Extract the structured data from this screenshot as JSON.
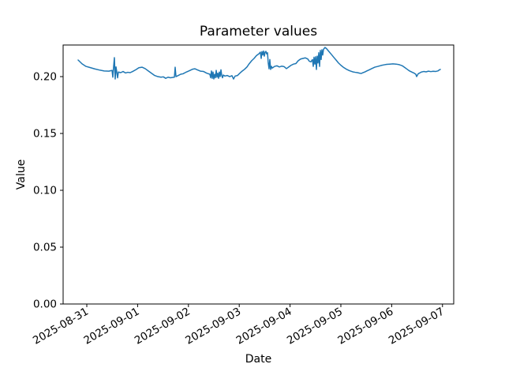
{
  "figure": {
    "background": "#ffffff",
    "axis_color": "#000000",
    "text_color": "#000000"
  },
  "chart_data": {
    "type": "line",
    "title": "Parameter values",
    "xlabel": "Date",
    "ylabel": "Value",
    "grid": false,
    "legend": null,
    "x_epoch": "2025-08-31",
    "x_tick_positions_days": [
      0,
      1,
      2,
      3,
      4,
      5,
      6,
      7
    ],
    "x_tick_labels": [
      "2025-08-31",
      "2025-09-01",
      "2025-09-02",
      "2025-09-03",
      "2025-09-04",
      "2025-09-05",
      "2025-09-06",
      "2025-09-07"
    ],
    "x_tick_rotation_deg": 30,
    "y_ticks": [
      0.0,
      0.05,
      0.1,
      0.15,
      0.2
    ],
    "y_tick_labels": [
      "0.00",
      "0.05",
      "0.10",
      "0.15",
      "0.20"
    ],
    "xlim_days": [
      -0.466,
      7.221
    ],
    "ylim": [
      0.0,
      0.2278
    ],
    "series": [
      {
        "name": "parameter-value",
        "color": "#1f77b4",
        "points": [
          [
            -0.171,
            0.2146
          ],
          [
            -0.093,
            0.2112
          ],
          [
            -0.016,
            0.209
          ],
          [
            0.062,
            0.208
          ],
          [
            0.155,
            0.2068
          ],
          [
            0.248,
            0.2058
          ],
          [
            0.342,
            0.205
          ],
          [
            0.435,
            0.2048
          ],
          [
            0.497,
            0.2055
          ],
          [
            0.512,
            0.1995
          ],
          [
            0.528,
            0.209
          ],
          [
            0.543,
            0.2167
          ],
          [
            0.559,
            0.1979
          ],
          [
            0.575,
            0.2085
          ],
          [
            0.59,
            0.204
          ],
          [
            0.606,
            0.199
          ],
          [
            0.621,
            0.204
          ],
          [
            0.668,
            0.2035
          ],
          [
            0.714,
            0.2045
          ],
          [
            0.761,
            0.2032
          ],
          [
            0.807,
            0.2038
          ],
          [
            0.854,
            0.2035
          ],
          [
            0.901,
            0.2045
          ],
          [
            0.963,
            0.206
          ],
          [
            1.025,
            0.2078
          ],
          [
            1.087,
            0.2083
          ],
          [
            1.149,
            0.207
          ],
          [
            1.211,
            0.205
          ],
          [
            1.273,
            0.203
          ],
          [
            1.335,
            0.201
          ],
          [
            1.398,
            0.2
          ],
          [
            1.46,
            0.1995
          ],
          [
            1.506,
            0.1998
          ],
          [
            1.553,
            0.1985
          ],
          [
            1.599,
            0.1995
          ],
          [
            1.646,
            0.199
          ],
          [
            1.693,
            0.1993
          ],
          [
            1.724,
            0.1995
          ],
          [
            1.739,
            0.2083
          ],
          [
            1.755,
            0.2
          ],
          [
            1.801,
            0.201
          ],
          [
            1.848,
            0.2021
          ],
          [
            1.894,
            0.2025
          ],
          [
            1.957,
            0.204
          ],
          [
            2.019,
            0.2052
          ],
          [
            2.081,
            0.2065
          ],
          [
            2.127,
            0.2069
          ],
          [
            2.174,
            0.206
          ],
          [
            2.236,
            0.2048
          ],
          [
            2.298,
            0.2045
          ],
          [
            2.36,
            0.203
          ],
          [
            2.422,
            0.2021
          ],
          [
            2.438,
            0.199
          ],
          [
            2.453,
            0.205
          ],
          [
            2.469,
            0.1985
          ],
          [
            2.484,
            0.204
          ],
          [
            2.5,
            0.1979
          ],
          [
            2.516,
            0.202
          ],
          [
            2.531,
            0.199
          ],
          [
            2.547,
            0.2055
          ],
          [
            2.562,
            0.1995
          ],
          [
            2.578,
            0.203
          ],
          [
            2.593,
            0.1985
          ],
          [
            2.609,
            0.204
          ],
          [
            2.624,
            0.2
          ],
          [
            2.64,
            0.206
          ],
          [
            2.655,
            0.201
          ],
          [
            2.671,
            0.199
          ],
          [
            2.686,
            0.2014
          ],
          [
            2.717,
            0.2005
          ],
          [
            2.764,
            0.201
          ],
          [
            2.811,
            0.2
          ],
          [
            2.857,
            0.2008
          ],
          [
            2.888,
            0.1979
          ],
          [
            2.919,
            0.2005
          ],
          [
            2.966,
            0.201
          ],
          [
            3.012,
            0.203
          ],
          [
            3.059,
            0.2049
          ],
          [
            3.106,
            0.2065
          ],
          [
            3.152,
            0.2085
          ],
          [
            3.199,
            0.2115
          ],
          [
            3.245,
            0.214
          ],
          [
            3.292,
            0.216
          ],
          [
            3.339,
            0.2185
          ],
          [
            3.385,
            0.22
          ],
          [
            3.416,
            0.2215
          ],
          [
            3.432,
            0.216
          ],
          [
            3.447,
            0.222
          ],
          [
            3.463,
            0.219
          ],
          [
            3.478,
            0.2225
          ],
          [
            3.494,
            0.218
          ],
          [
            3.509,
            0.2215
          ],
          [
            3.525,
            0.2222
          ],
          [
            3.54,
            0.22
          ],
          [
            3.556,
            0.221
          ],
          [
            3.571,
            0.212
          ],
          [
            3.587,
            0.2069
          ],
          [
            3.602,
            0.215
          ],
          [
            3.618,
            0.2063
          ],
          [
            3.634,
            0.209
          ],
          [
            3.649,
            0.2075
          ],
          [
            3.696,
            0.209
          ],
          [
            3.742,
            0.2095
          ],
          [
            3.789,
            0.2085
          ],
          [
            3.835,
            0.2092
          ],
          [
            3.882,
            0.2088
          ],
          [
            3.929,
            0.207
          ],
          [
            3.975,
            0.2085
          ],
          [
            4.022,
            0.21
          ],
          [
            4.068,
            0.211
          ],
          [
            4.115,
            0.2115
          ],
          [
            4.161,
            0.214
          ],
          [
            4.208,
            0.2155
          ],
          [
            4.255,
            0.216
          ],
          [
            4.301,
            0.2165
          ],
          [
            4.348,
            0.2155
          ],
          [
            4.379,
            0.2135
          ],
          [
            4.41,
            0.213
          ],
          [
            4.441,
            0.215
          ],
          [
            4.457,
            0.209
          ],
          [
            4.472,
            0.217
          ],
          [
            4.488,
            0.211
          ],
          [
            4.503,
            0.2175
          ],
          [
            4.519,
            0.2063
          ],
          [
            4.534,
            0.218
          ],
          [
            4.55,
            0.212
          ],
          [
            4.565,
            0.221
          ],
          [
            4.581,
            0.209
          ],
          [
            4.596,
            0.223
          ],
          [
            4.612,
            0.215
          ],
          [
            4.627,
            0.2236
          ],
          [
            4.643,
            0.219
          ],
          [
            4.658,
            0.224
          ],
          [
            4.689,
            0.2257
          ],
          [
            4.72,
            0.2245
          ],
          [
            4.767,
            0.222
          ],
          [
            4.814,
            0.2195
          ],
          [
            4.86,
            0.217
          ],
          [
            4.907,
            0.2145
          ],
          [
            4.953,
            0.212
          ],
          [
            5.0,
            0.21
          ],
          [
            5.047,
            0.2083
          ],
          [
            5.109,
            0.2065
          ],
          [
            5.171,
            0.2052
          ],
          [
            5.233,
            0.2042
          ],
          [
            5.28,
            0.2038
          ],
          [
            5.326,
            0.2035
          ],
          [
            5.373,
            0.203
          ],
          [
            5.404,
            0.2028
          ],
          [
            5.435,
            0.2035
          ],
          [
            5.466,
            0.204
          ],
          [
            5.512,
            0.205
          ],
          [
            5.559,
            0.206
          ],
          [
            5.606,
            0.207
          ],
          [
            5.668,
            0.2083
          ],
          [
            5.73,
            0.209
          ],
          [
            5.792,
            0.2098
          ],
          [
            5.854,
            0.2104
          ],
          [
            5.901,
            0.2108
          ],
          [
            5.963,
            0.211
          ],
          [
            6.025,
            0.2112
          ],
          [
            6.087,
            0.211
          ],
          [
            6.149,
            0.2105
          ],
          [
            6.211,
            0.2095
          ],
          [
            6.258,
            0.208
          ],
          [
            6.304,
            0.2065
          ],
          [
            6.351,
            0.205
          ],
          [
            6.398,
            0.204
          ],
          [
            6.444,
            0.203
          ],
          [
            6.475,
            0.2021
          ],
          [
            6.491,
            0.2
          ],
          [
            6.522,
            0.2025
          ],
          [
            6.584,
            0.204
          ],
          [
            6.63,
            0.2045
          ],
          [
            6.677,
            0.2042
          ],
          [
            6.724,
            0.2048
          ],
          [
            6.77,
            0.2044
          ],
          [
            6.817,
            0.2047
          ],
          [
            6.863,
            0.2045
          ],
          [
            6.91,
            0.205
          ],
          [
            6.941,
            0.206
          ],
          [
            6.957,
            0.2063
          ]
        ]
      }
    ]
  }
}
